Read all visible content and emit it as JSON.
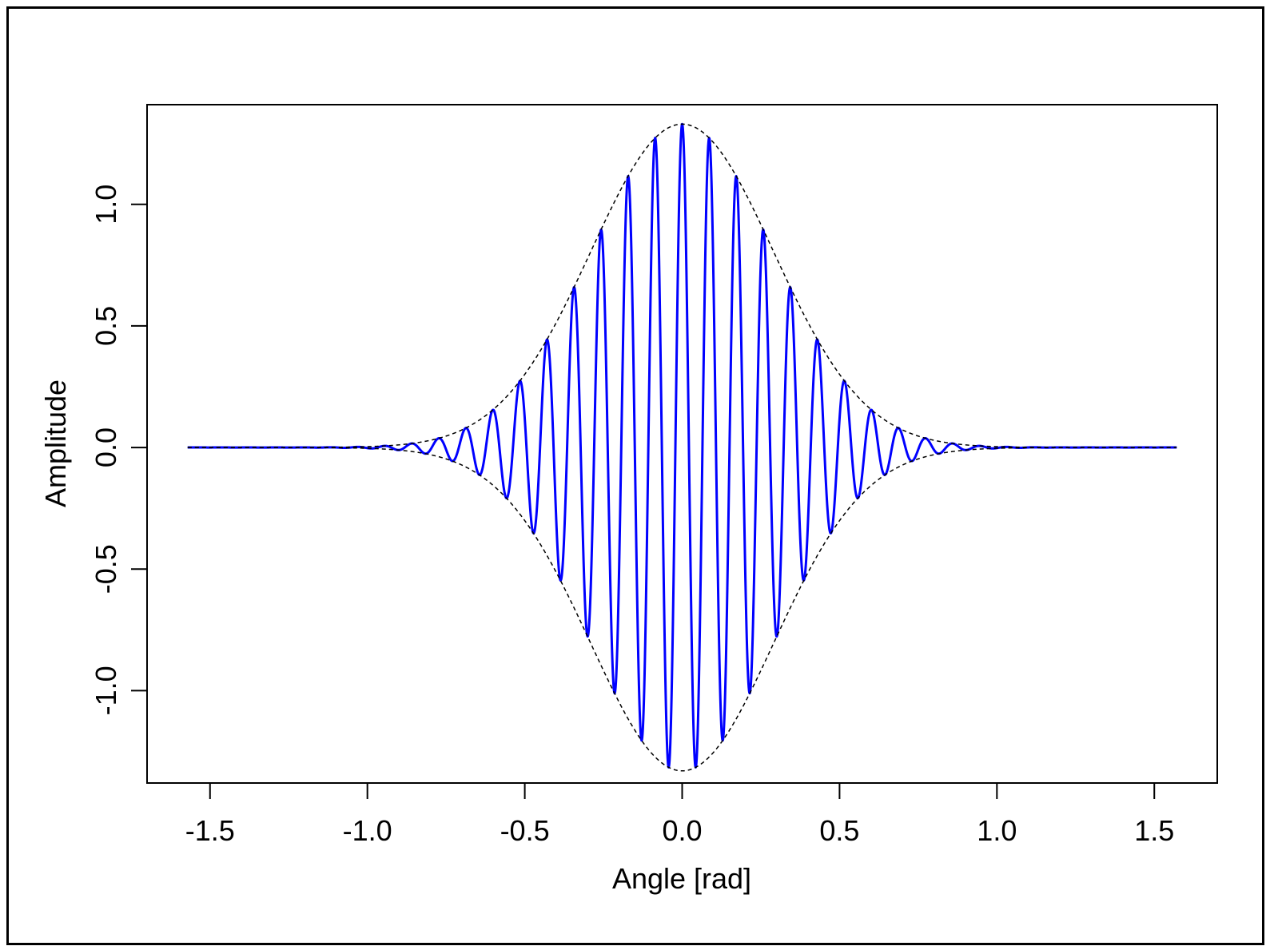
{
  "chart_data": {
    "type": "line",
    "title": "",
    "xlabel": "Angle [rad]",
    "ylabel": "Amplitude",
    "xlim": [
      -1.7,
      1.7
    ],
    "ylim": [
      -1.38,
      1.41
    ],
    "xticks": [
      -1.5,
      -1.0,
      -0.5,
      0.0,
      0.5,
      1.0,
      1.5
    ],
    "xtick_labels": [
      "-1.5",
      "-1.0",
      "-0.5",
      "0.0",
      "0.5",
      "1.0",
      "1.5"
    ],
    "yticks": [
      -1.0,
      -0.5,
      0.0,
      0.5,
      1.0
    ],
    "ytick_labels": [
      "-1.0",
      "-0.5",
      "0.0",
      "0.5",
      "1.0"
    ],
    "grid": false,
    "legend": "none",
    "series": [
      {
        "style": "solid",
        "color": "#0000ff",
        "peak_amplitude": 1.33,
        "carrier_period": 0.086,
        "gaussian_sigma": 0.29,
        "x_range": [
          -1.571,
          1.571
        ]
      },
      {
        "style": "dashed",
        "color": "#000000",
        "description_of_envelope": "upper and lower gaussian envelope",
        "peak_amplitude": 1.33,
        "gaussian_sigma": 0.29,
        "x_range": [
          -1.571,
          1.571
        ]
      }
    ]
  }
}
